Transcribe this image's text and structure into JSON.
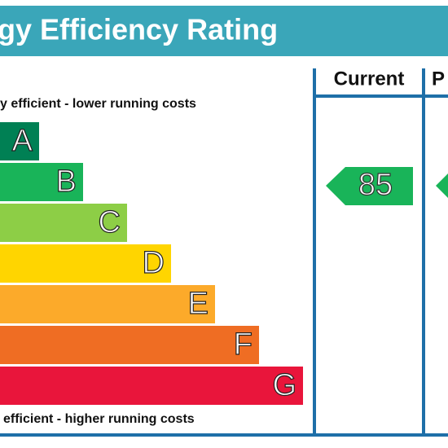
{
  "header": {
    "title": "gy Efficiency Rating"
  },
  "columns": {
    "current": "Current",
    "potential": "P"
  },
  "top_note": "y efficient - lower running costs",
  "bottom_note": "efficient - higher running costs",
  "bands": [
    {
      "letter": "A",
      "color": "#008054"
    },
    {
      "letter": "B",
      "color": "#19b459"
    },
    {
      "letter": "C",
      "color": "#8dce46"
    },
    {
      "letter": "D",
      "color": "#ffd500"
    },
    {
      "letter": "E",
      "color": "#fcaa2a"
    },
    {
      "letter": "F",
      "color": "#ef6d23"
    },
    {
      "letter": "G",
      "color": "#e9153b"
    }
  ],
  "current_rating": {
    "value": 85,
    "color": "#19b459"
  }
}
